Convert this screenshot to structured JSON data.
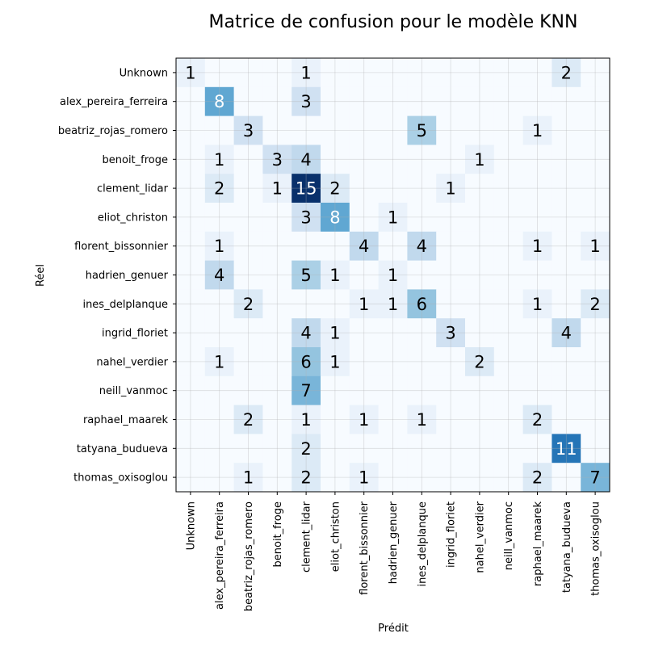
{
  "chart_data": {
    "type": "heatmap",
    "title": "Matrice de confusion pour le modèle KNN",
    "xlabel": "Prédit",
    "ylabel": "Réel",
    "colormap": "Blues",
    "vmin": 0,
    "vmax": 15,
    "grid": true,
    "labels": [
      "Unknown",
      "alex_pereira_ferreira",
      "beatriz_rojas_romero",
      "benoit_froge",
      "clement_lidar",
      "eliot_christon",
      "florent_bissonnier",
      "hadrien_genuer",
      "ines_delplanque",
      "ingrid_floriet",
      "nahel_verdier",
      "neill_vanmoc",
      "raphael_maarek",
      "tatyana_budueva",
      "thomas_oxisoglou"
    ],
    "matrix": [
      [
        1,
        0,
        0,
        0,
        1,
        0,
        0,
        0,
        0,
        0,
        0,
        0,
        0,
        2,
        0
      ],
      [
        0,
        8,
        0,
        0,
        3,
        0,
        0,
        0,
        0,
        0,
        0,
        0,
        0,
        0,
        0
      ],
      [
        0,
        0,
        3,
        0,
        0,
        0,
        0,
        0,
        5,
        0,
        0,
        0,
        1,
        0,
        0
      ],
      [
        0,
        1,
        0,
        3,
        4,
        0,
        0,
        0,
        0,
        0,
        1,
        0,
        0,
        0,
        0
      ],
      [
        0,
        2,
        0,
        1,
        15,
        2,
        0,
        0,
        0,
        1,
        0,
        0,
        0,
        0,
        0
      ],
      [
        0,
        0,
        0,
        0,
        3,
        8,
        0,
        1,
        0,
        0,
        0,
        0,
        0,
        0,
        0
      ],
      [
        0,
        1,
        0,
        0,
        0,
        0,
        4,
        0,
        4,
        0,
        0,
        0,
        1,
        0,
        1
      ],
      [
        0,
        4,
        0,
        0,
        5,
        1,
        0,
        1,
        0,
        0,
        0,
        0,
        0,
        0,
        0
      ],
      [
        0,
        0,
        2,
        0,
        0,
        0,
        1,
        1,
        6,
        0,
        0,
        0,
        1,
        0,
        2
      ],
      [
        0,
        0,
        0,
        0,
        4,
        1,
        0,
        0,
        0,
        3,
        0,
        0,
        0,
        4,
        0
      ],
      [
        0,
        1,
        0,
        0,
        6,
        1,
        0,
        0,
        0,
        0,
        2,
        0,
        0,
        0,
        0
      ],
      [
        0,
        0,
        0,
        0,
        7,
        0,
        0,
        0,
        0,
        0,
        0,
        0,
        0,
        0,
        0
      ],
      [
        0,
        0,
        2,
        0,
        1,
        0,
        1,
        0,
        1,
        0,
        0,
        0,
        2,
        0,
        0
      ],
      [
        0,
        0,
        0,
        0,
        2,
        0,
        0,
        0,
        0,
        0,
        0,
        0,
        0,
        11,
        0
      ],
      [
        0,
        0,
        1,
        0,
        2,
        0,
        1,
        0,
        0,
        0,
        0,
        0,
        2,
        0,
        7
      ]
    ]
  }
}
